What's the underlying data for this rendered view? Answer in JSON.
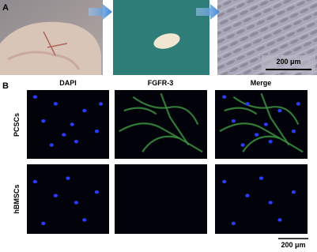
{
  "panels": {
    "a": {
      "label": "A",
      "scale_bar": "200 μm"
    },
    "b": {
      "label": "B",
      "columns": [
        "DAPI",
        "FGFR-3",
        "Merge"
      ],
      "rows": [
        "PCSCs",
        "hBMSCs"
      ],
      "scale_bar": "200 μm"
    }
  }
}
